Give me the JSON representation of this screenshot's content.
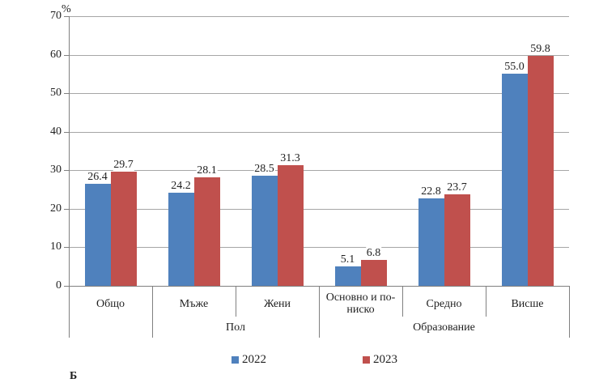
{
  "chart_data": {
    "type": "bar",
    "title": "",
    "unit_label": "%",
    "categories": [
      "Общо",
      "Мъже",
      "Жени",
      "Основно и по-ниско",
      "Средно",
      "Висше"
    ],
    "groups": [
      {
        "label": "",
        "start": 0,
        "end": 0
      },
      {
        "label": "Пол",
        "start": 1,
        "end": 2
      },
      {
        "label": "Образование",
        "start": 3,
        "end": 5
      }
    ],
    "series": [
      {
        "name": "2022",
        "color": "#4f81bd",
        "values": [
          26.4,
          24.2,
          28.5,
          5.1,
          22.8,
          55.0
        ]
      },
      {
        "name": "2023",
        "color": "#c0504d",
        "values": [
          29.7,
          28.1,
          31.3,
          6.8,
          23.7,
          59.8
        ]
      }
    ],
    "ylim": [
      0,
      70
    ],
    "ytick_step": 10,
    "grid": true,
    "legend_position": "bottom",
    "value_label_decimals": 1,
    "axis_color": "#808080",
    "gridline_color": "#a6a6a6",
    "text_color": "#1f1f1f"
  },
  "caption_fragment": "Б"
}
